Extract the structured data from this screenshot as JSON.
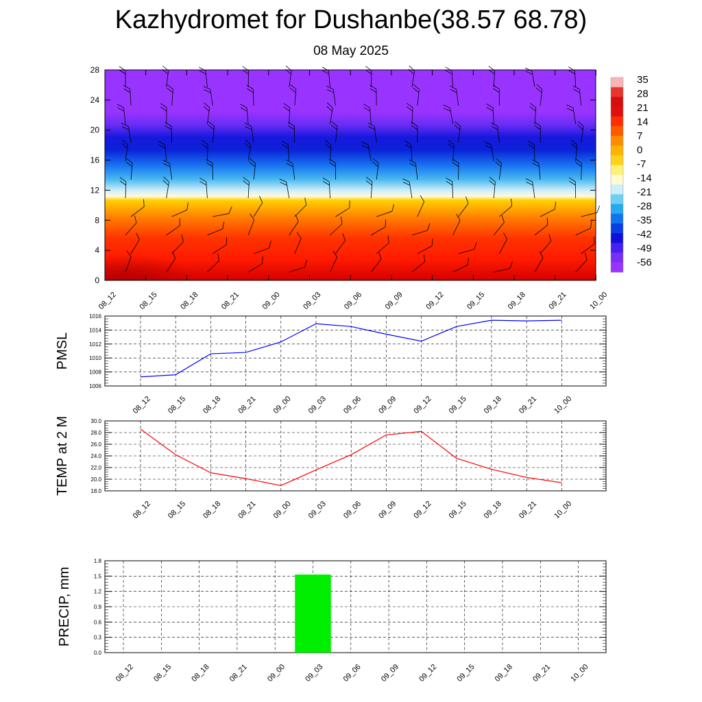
{
  "header": {
    "title": "Kazhydromet for Dushanbe(38.57 68.78)",
    "subtitle": "08 May 2025"
  },
  "colors": {
    "pmsl_line": "#0000ff",
    "temp_line": "#ff0000",
    "precip_bar": "#00ee00",
    "grid": "#000000"
  },
  "chart_data": [
    {
      "type": "heatmap",
      "name": "cross-section",
      "categories": [
        "08_12",
        "08_15",
        "08_18",
        "08_21",
        "09_00",
        "09_03",
        "09_06",
        "09_09",
        "09_12",
        "09_15",
        "09_18",
        "09_21",
        "10_00"
      ],
      "yticks": [
        "0",
        "4",
        "8",
        "12",
        "16",
        "20",
        "24",
        "28"
      ],
      "ylim": [
        0,
        28
      ],
      "colorbar_labels": [
        "35",
        "28",
        "21",
        "14",
        "7",
        "0",
        "-7",
        "-14",
        "-21",
        "-28",
        "-35",
        "-42",
        "-49",
        "-56"
      ],
      "colorbar_colors": [
        "#f9b4b4",
        "#e8352e",
        "#d50f0f",
        "#e01010",
        "#ff2e00",
        "#ff5a00",
        "#ff8c00",
        "#ffb300",
        "#ffd21a",
        "#fff07a",
        "#fffbd0",
        "#cdeefb",
        "#6fd0f5",
        "#28a8ee",
        "#1073f0",
        "#0a3fe6",
        "#1010d8",
        "#4520f0",
        "#7a2ff5",
        "#9933ff"
      ],
      "wind_barbs": true,
      "grid": false
    },
    {
      "type": "line",
      "name": "pmsl",
      "ylabel": "PMSL",
      "categories": [
        "08_12",
        "08_15",
        "08_18",
        "08_21",
        "09_00",
        "09_03",
        "09_06",
        "09_09",
        "09_12",
        "09_15",
        "09_18",
        "09_21",
        "10_00"
      ],
      "values": [
        1007.3,
        1007.6,
        1010.6,
        1010.8,
        1012.3,
        1014.9,
        1014.5,
        1013.4,
        1012.4,
        1014.5,
        1015.4,
        1015.3,
        1015.4
      ],
      "ylim": [
        1006,
        1016
      ],
      "yticks": [
        "1006",
        "1008",
        "1010",
        "1012",
        "1014",
        "1016"
      ],
      "grid": true
    },
    {
      "type": "line",
      "name": "temp",
      "ylabel": "TEMP at 2 M",
      "categories": [
        "08_12",
        "08_15",
        "08_18",
        "08_21",
        "09_00",
        "09_03",
        "09_06",
        "09_09",
        "09_12",
        "09_15",
        "09_18",
        "09_21",
        "10_00"
      ],
      "values": [
        28.6,
        24.2,
        21.1,
        20.1,
        18.9,
        21.6,
        24.2,
        27.6,
        28.2,
        23.6,
        21.7,
        20.3,
        19.4
      ],
      "ylim": [
        18,
        30
      ],
      "yticks": [
        "18.0",
        "20.0",
        "22.0",
        "24.0",
        "26.0",
        "28.0",
        "30.0"
      ],
      "grid": true
    },
    {
      "type": "bar",
      "name": "precip",
      "ylabel": "PRECIP, mm",
      "categories": [
        "08_12",
        "08_15",
        "08_18",
        "08_21",
        "09_00",
        "09_03",
        "09_06",
        "09_09",
        "09_12",
        "09_15",
        "09_18",
        "09_21",
        "10_00"
      ],
      "values": [
        0,
        0,
        0,
        0,
        0,
        1.53,
        0,
        0,
        0,
        0,
        0,
        0,
        0
      ],
      "ylim": [
        0,
        1.8
      ],
      "yticks": [
        "0.0",
        "0.3",
        "0.6",
        "0.9",
        "1.2",
        "1.5",
        "1.8"
      ],
      "grid": true
    }
  ]
}
